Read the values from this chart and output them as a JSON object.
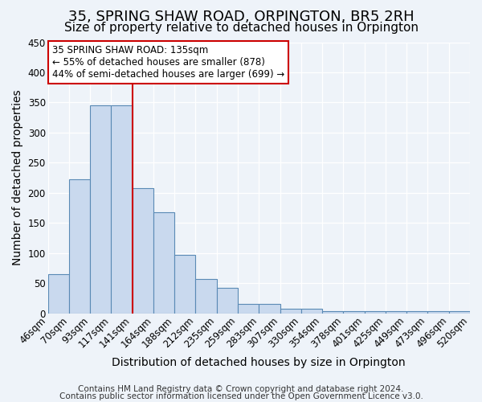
{
  "title": "35, SPRING SHAW ROAD, ORPINGTON, BR5 2RH",
  "subtitle": "Size of property relative to detached houses in Orpington",
  "xlabel": "Distribution of detached houses by size in Orpington",
  "ylabel": "Number of detached properties",
  "bin_labels": [
    "46sqm",
    "70sqm",
    "93sqm",
    "117sqm",
    "141sqm",
    "164sqm",
    "188sqm",
    "212sqm",
    "235sqm",
    "259sqm",
    "283sqm",
    "307sqm",
    "330sqm",
    "354sqm",
    "378sqm",
    "401sqm",
    "425sqm",
    "449sqm",
    "473sqm",
    "496sqm",
    "520sqm"
  ],
  "bar_heights": [
    65,
    222,
    345,
    345,
    208,
    167,
    97,
    57,
    42,
    15,
    15,
    7,
    7,
    3,
    3,
    3,
    3,
    3,
    3,
    3
  ],
  "bar_color": "#c9d9ee",
  "bar_edge_color": "#5a8ab5",
  "vline_color": "#cc0000",
  "annotation_lines": [
    "35 SPRING SHAW ROAD: 135sqm",
    "← 55% of detached houses are smaller (878)",
    "44% of semi-detached houses are larger (699) →"
  ],
  "annotation_box_color": "#cc0000",
  "ylim": [
    0,
    450
  ],
  "yticks": [
    0,
    50,
    100,
    150,
    200,
    250,
    300,
    350,
    400,
    450
  ],
  "footer_lines": [
    "Contains HM Land Registry data © Crown copyright and database right 2024.",
    "Contains public sector information licensed under the Open Government Licence v3.0."
  ],
  "background_color": "#eef3f9",
  "grid_color": "#ffffff",
  "title_fontsize": 13,
  "subtitle_fontsize": 11,
  "axis_label_fontsize": 10,
  "tick_fontsize": 8.5,
  "annotation_fontsize": 8.5,
  "footer_fontsize": 7.5
}
